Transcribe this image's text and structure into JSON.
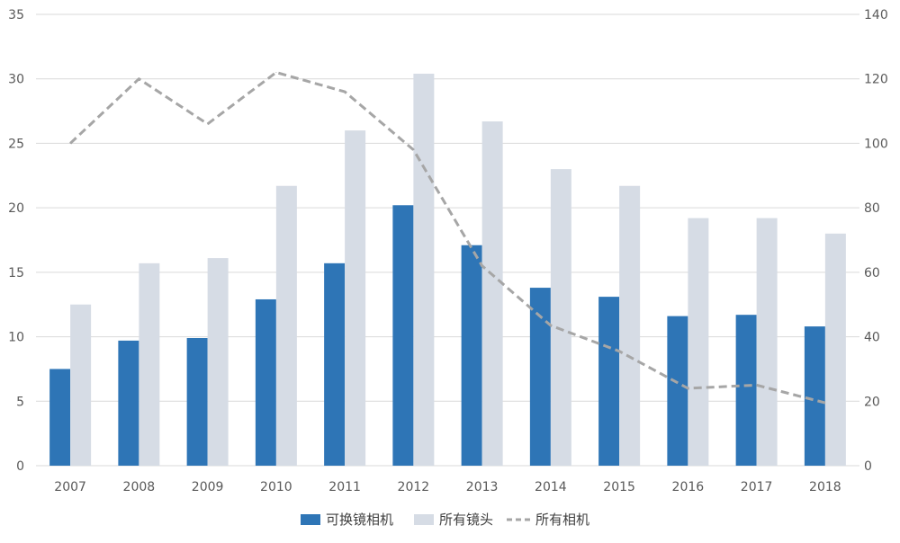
{
  "chart_data": {
    "type": "bar",
    "categories": [
      "2007",
      "2008",
      "2009",
      "2010",
      "2011",
      "2012",
      "2013",
      "2014",
      "2015",
      "2016",
      "2017",
      "2018"
    ],
    "series": [
      {
        "name": "可换镜相机",
        "type": "bar",
        "axis": "left",
        "color": "#2e75b6",
        "values": [
          7.5,
          9.7,
          9.9,
          12.9,
          15.7,
          20.2,
          17.1,
          13.8,
          13.1,
          11.6,
          11.7,
          10.8
        ]
      },
      {
        "name": "所有镜头",
        "type": "bar",
        "axis": "left",
        "color": "#d6dce5",
        "values": [
          12.5,
          15.7,
          16.1,
          21.7,
          26.0,
          30.4,
          26.7,
          23.0,
          21.7,
          19.2,
          19.2,
          18.0
        ]
      },
      {
        "name": "所有相机",
        "type": "line",
        "style": "dashed",
        "axis": "right",
        "color": "#a6a6a6",
        "values": [
          100,
          120,
          106,
          122,
          116,
          98,
          62,
          43.5,
          35.5,
          24,
          25,
          19.5
        ]
      }
    ],
    "left_axis": {
      "min": 0,
      "max": 35,
      "ticks": [
        "0",
        "5",
        "10",
        "15",
        "20",
        "25",
        "30",
        "35"
      ]
    },
    "right_axis": {
      "min": 0,
      "max": 140,
      "ticks": [
        "0",
        "20",
        "40",
        "60",
        "80",
        "100",
        "120",
        "140"
      ]
    },
    "grid": true,
    "legend": "bottom-center",
    "title": "",
    "xlabel": "",
    "ylabel": ""
  }
}
